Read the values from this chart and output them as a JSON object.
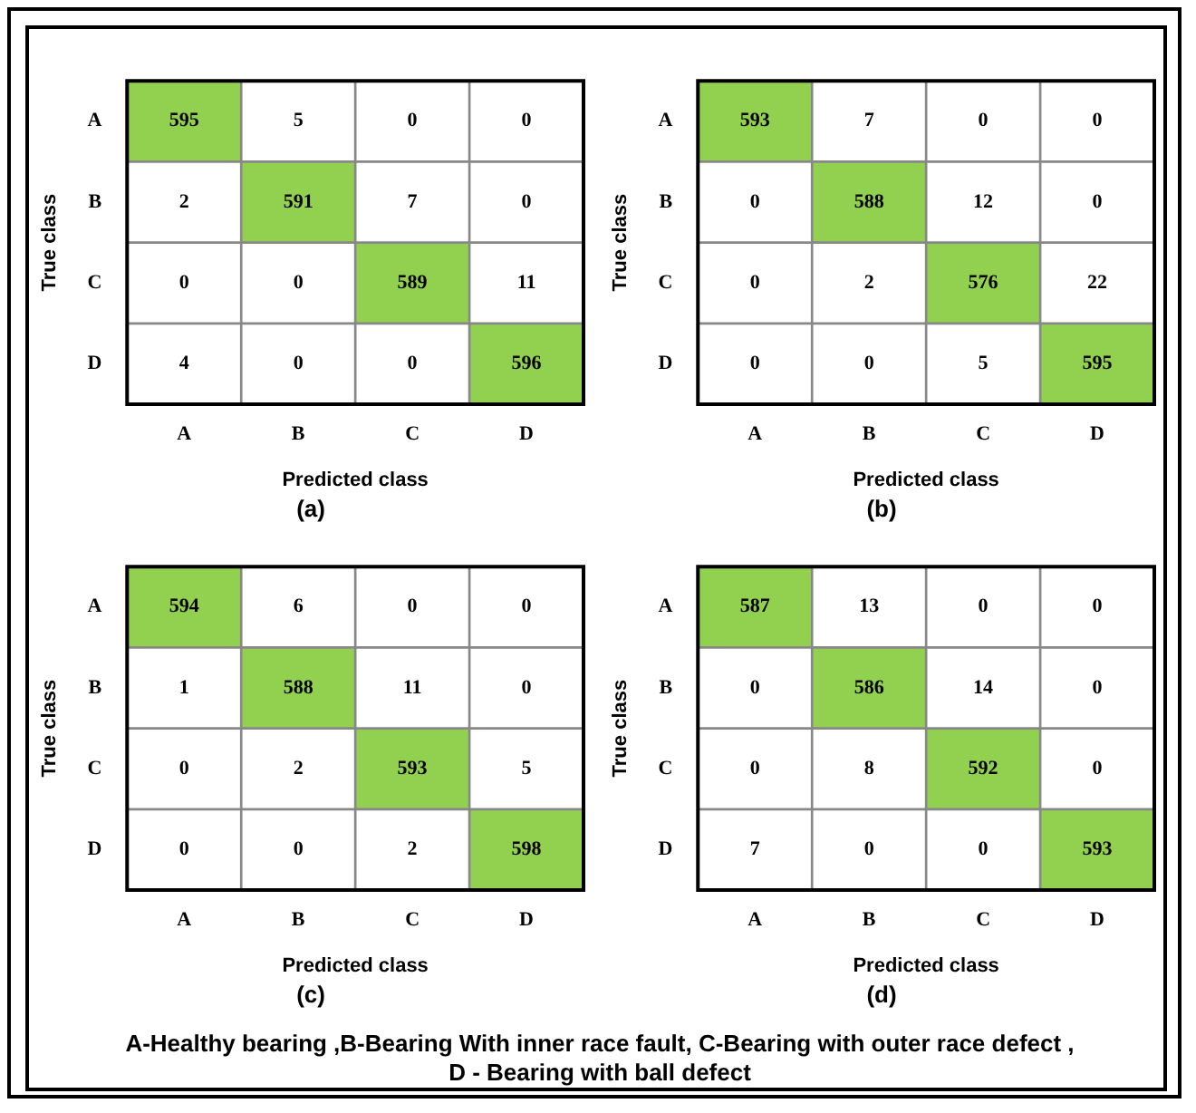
{
  "chart_data": [
    {
      "type": "heatmap",
      "title": "(a)",
      "xlabel": "Predicted class",
      "ylabel": "True class",
      "categories": [
        "A",
        "B",
        "C",
        "D"
      ],
      "y_categories": [
        "A",
        "B",
        "C",
        "D"
      ],
      "data_labels": true,
      "cells": [
        [
          595,
          5,
          0,
          0
        ],
        [
          2,
          591,
          7,
          0
        ],
        [
          0,
          0,
          589,
          11
        ],
        [
          4,
          0,
          0,
          596
        ]
      ],
      "colors": [
        [
          "#92d050",
          "#ffffff",
          "#ffffff",
          "#ffffff"
        ],
        [
          "#ffffff",
          "#92d050",
          "#ffffff",
          "#ffffff"
        ],
        [
          "#ffffff",
          "#ffffff",
          "#92d050",
          "#ffffff"
        ],
        [
          "#ffffff",
          "#ffffff",
          "#ffffff",
          "#92d050"
        ]
      ]
    },
    {
      "type": "heatmap",
      "title": "(b)",
      "xlabel": "Predicted class",
      "ylabel": "True class",
      "categories": [
        "A",
        "B",
        "C",
        "D"
      ],
      "y_categories": [
        "A",
        "B",
        "C",
        "D"
      ],
      "data_labels": true,
      "cells": [
        [
          593,
          7,
          0,
          0
        ],
        [
          0,
          588,
          12,
          0
        ],
        [
          0,
          2,
          576,
          22
        ],
        [
          0,
          0,
          5,
          595
        ]
      ],
      "colors": [
        [
          "#92d050",
          "#ffffff",
          "#ffffff",
          "#ffffff"
        ],
        [
          "#ffffff",
          "#92d050",
          "#ffffff",
          "#ffffff"
        ],
        [
          "#ffffff",
          "#ffffff",
          "#92d050",
          "#ffffff"
        ],
        [
          "#ffffff",
          "#ffffff",
          "#ffffff",
          "#92d050"
        ]
      ]
    },
    {
      "type": "heatmap",
      "title": "(c)",
      "xlabel": "Predicted class",
      "ylabel": "True class",
      "categories": [
        "A",
        "B",
        "C",
        "D"
      ],
      "y_categories": [
        "A",
        "B",
        "C",
        "D"
      ],
      "data_labels": true,
      "cells": [
        [
          594,
          6,
          0,
          0
        ],
        [
          1,
          588,
          11,
          0
        ],
        [
          0,
          2,
          593,
          5
        ],
        [
          0,
          0,
          2,
          598
        ]
      ],
      "colors": [
        [
          "#92d050",
          "#ffffff",
          "#ffffff",
          "#ffffff"
        ],
        [
          "#ffffff",
          "#92d050",
          "#ffffff",
          "#ffffff"
        ],
        [
          "#ffffff",
          "#ffffff",
          "#92d050",
          "#ffffff"
        ],
        [
          "#ffffff",
          "#ffffff",
          "#ffffff",
          "#92d050"
        ]
      ]
    },
    {
      "type": "heatmap",
      "title": "(d)",
      "xlabel": "Predicted class",
      "ylabel": "True class",
      "categories": [
        "A",
        "B",
        "C",
        "D"
      ],
      "y_categories": [
        "A",
        "B",
        "C",
        "D"
      ],
      "data_labels": true,
      "cells": [
        [
          587,
          13,
          0,
          0
        ],
        [
          0,
          586,
          14,
          0
        ],
        [
          0,
          8,
          592,
          0
        ],
        [
          7,
          0,
          0,
          593
        ]
      ],
      "colors": [
        [
          "#92d050",
          "#ffffff",
          "#ffffff",
          "#ffffff"
        ],
        [
          "#ffffff",
          "#92d050",
          "#ffffff",
          "#ffffff"
        ],
        [
          "#ffffff",
          "#ffffff",
          "#92d050",
          "#ffffff"
        ],
        [
          "#ffffff",
          "#ffffff",
          "#ffffff",
          "#92d050"
        ]
      ],
      "annotations": [
        "A-Healthy bearing ,B-Bearing With inner race fault, C-Bearing with outer race defect ,\nD - Bearing with ball defect"
      ]
    }
  ]
}
